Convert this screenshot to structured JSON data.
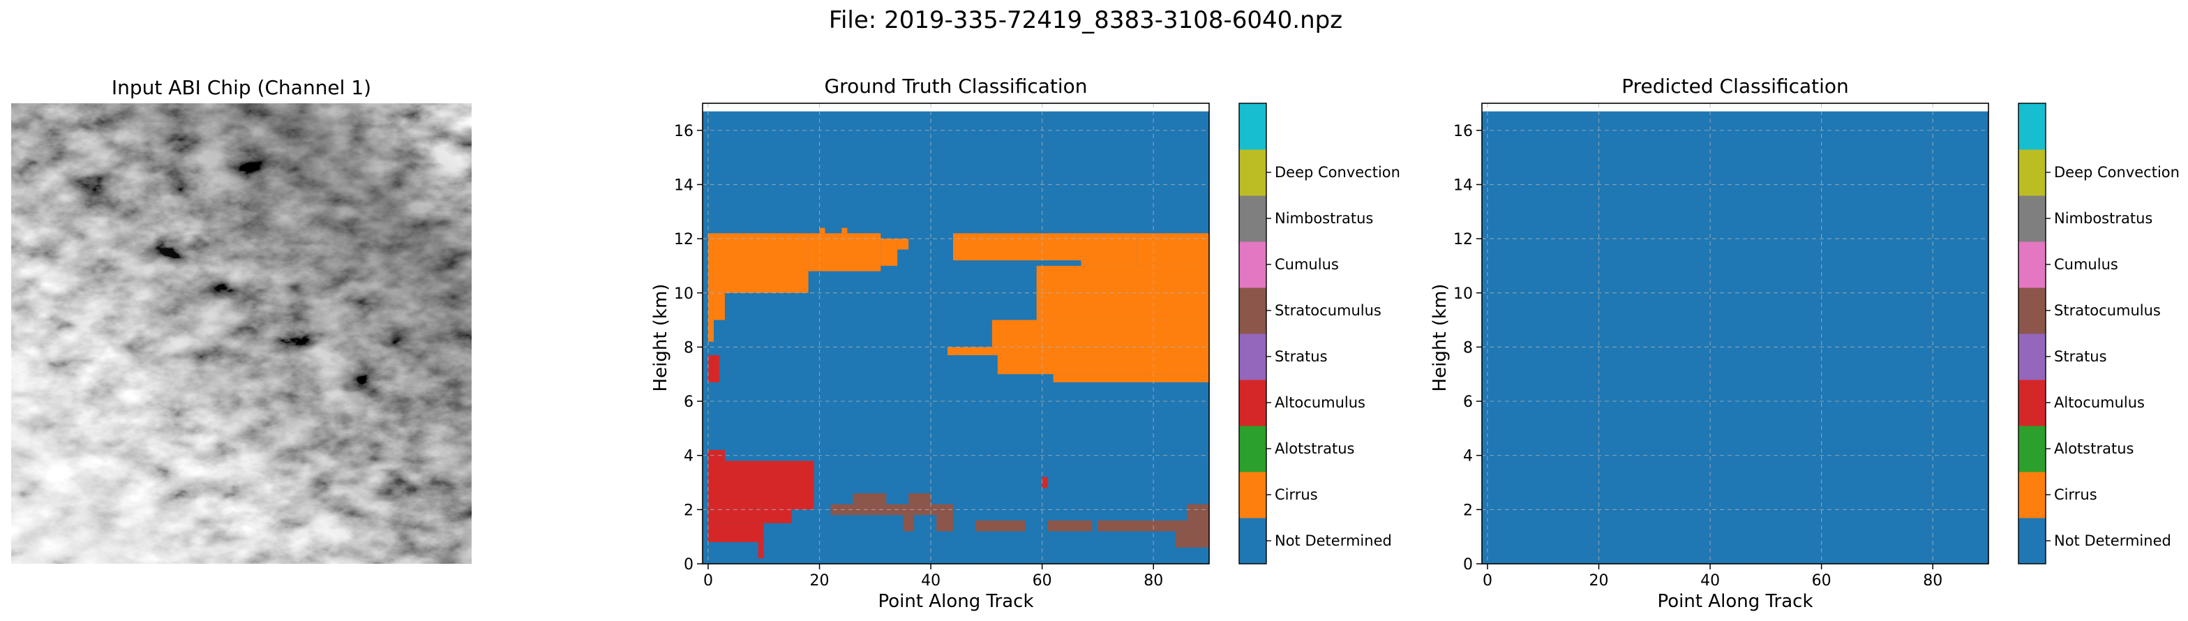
{
  "figure": {
    "suptitle": "File: 2019-335-72419_8383-3108-6040.npz"
  },
  "image_panel": {
    "title": "Input ABI Chip (Channel 1)"
  },
  "classes": [
    "Not Determined",
    "Cirrus",
    "Alotstratus",
    "Altocumulus",
    "Stratus",
    "Stratocumulus",
    "Cumulus",
    "Nimbostratus",
    "Deep Convection"
  ],
  "class_colors": [
    "#1f77b4",
    "#ff7f0e",
    "#2ca02c",
    "#d62728",
    "#9467bd",
    "#8c564b",
    "#e377c2",
    "#7f7f7f",
    "#bcbd22",
    "#17becf"
  ],
  "chart_data": [
    {
      "type": "heatmap",
      "title": "Ground Truth Classification",
      "xlabel": "Point Along Track",
      "ylabel": "Height (km)",
      "xlim": [
        -1,
        90
      ],
      "ylim": [
        0,
        17
      ],
      "xticks": [
        0,
        20,
        40,
        60,
        80
      ],
      "yticks": [
        0,
        2,
        4,
        6,
        8,
        10,
        12,
        14,
        16
      ],
      "grid": true,
      "colorbar": "right",
      "background_class": "Not Determined",
      "regions": [
        {
          "class": "Cirrus",
          "rects": [
            [
              0,
              10.0,
              18,
              12.2
            ],
            [
              0,
              9.0,
              3,
              10.0
            ],
            [
              0,
              8.2,
              1,
              9.0
            ],
            [
              18,
              10.8,
              31,
              12.2
            ],
            [
              20,
              12.2,
              21,
              12.4
            ],
            [
              24,
              12.2,
              25,
              12.4
            ],
            [
              31,
              11.0,
              34,
              12.0
            ],
            [
              34,
              11.6,
              36,
              12.0
            ],
            [
              44,
              11.2,
              67,
              12.2
            ],
            [
              67,
              11.0,
              77,
              12.2
            ],
            [
              77,
              11.0,
              90,
              12.2
            ],
            [
              59,
              9.0,
              90,
              11.0
            ],
            [
              51,
              8.0,
              90,
              9.0
            ],
            [
              43,
              7.7,
              90,
              8.0
            ],
            [
              52,
              7.0,
              90,
              7.7
            ],
            [
              62,
              6.7,
              90,
              7.0
            ]
          ]
        },
        {
          "class": "Altocumulus",
          "rects": [
            [
              0,
              6.7,
              2,
              7.7
            ],
            [
              0,
              2.0,
              19,
              3.8
            ],
            [
              0,
              3.8,
              3,
              4.2
            ],
            [
              0,
              1.5,
              15,
              2.0
            ],
            [
              0,
              0.8,
              10,
              1.5
            ],
            [
              9,
              0.2,
              10,
              0.8
            ],
            [
              60,
              2.8,
              61,
              3.2
            ]
          ]
        },
        {
          "class": "Stratocumulus",
          "rects": [
            [
              22,
              1.8,
              44,
              2.2
            ],
            [
              26,
              2.2,
              32,
              2.6
            ],
            [
              36,
              2.2,
              40,
              2.6
            ],
            [
              41,
              1.2,
              44,
              1.8
            ],
            [
              35,
              1.2,
              37,
              1.8
            ],
            [
              48,
              1.2,
              57,
              1.6
            ],
            [
              61,
              1.2,
              69,
              1.6
            ],
            [
              70,
              1.2,
              90,
              1.6
            ],
            [
              84,
              0.6,
              90,
              1.2
            ],
            [
              86,
              1.6,
              90,
              2.2
            ]
          ]
        }
      ]
    },
    {
      "type": "heatmap",
      "title": "Predicted Classification",
      "xlabel": "Point Along Track",
      "ylabel": "Height (km)",
      "xlim": [
        -1,
        90
      ],
      "ylim": [
        0,
        17
      ],
      "xticks": [
        0,
        20,
        40,
        60,
        80
      ],
      "yticks": [
        0,
        2,
        4,
        6,
        8,
        10,
        12,
        14,
        16
      ],
      "grid": true,
      "colorbar": "right",
      "background_class": "Not Determined",
      "regions": []
    }
  ]
}
